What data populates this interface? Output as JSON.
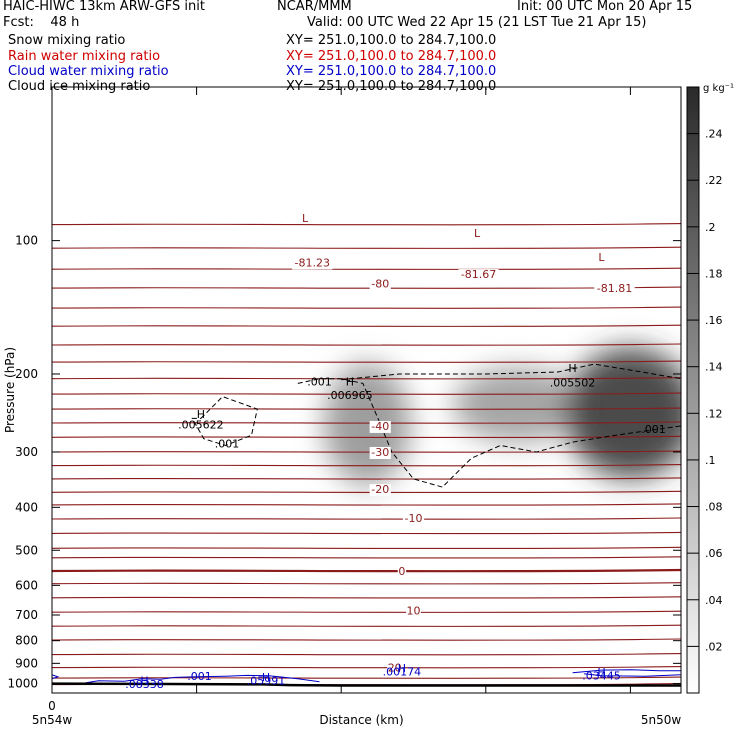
{
  "header": {
    "title_left": "HAIC-HIWC 13km ARW-GFS init",
    "org": "NCAR/MMM",
    "init": "Init: 00 UTC Mon 20 Apr 15",
    "fcst": "Fcst:    48 h",
    "valid": "Valid: 00 UTC Wed 22 Apr 15 (21 LST Tue 21 Apr 15)",
    "fields": [
      {
        "label": "Snow mixing ratio",
        "xy": "XY= 251.0,100.0 to 284.7,100.0",
        "color": "#000000"
      },
      {
        "label": "Rain water mixing ratio",
        "xy": "XY= 251.0,100.0 to 284.7,100.0",
        "color": "#d00000"
      },
      {
        "label": "Cloud water mixing ratio",
        "xy": "XY= 251.0,100.0 to 284.7,100.0",
        "color": "#0000c8"
      },
      {
        "label": "Cloud ice mixing ratio",
        "xy": "XY= 251.0,100.0 to 284.7,100.0",
        "color": "#000000"
      }
    ]
  },
  "chart_data": {
    "type": "heatmap",
    "xlabel": "Distance (km)",
    "ylabel": "Pressure (hPa)",
    "x_ticks": [
      "0"
    ],
    "x_end_labels": [
      "5n54w",
      "5n50w"
    ],
    "y_ticks": [
      100,
      200,
      300,
      400,
      500,
      600,
      700,
      800,
      900,
      1000
    ],
    "ylim": [
      1050,
      45
    ],
    "xlim": [
      0,
      4.35
    ],
    "colorbar": {
      "unit": "g kg⁻¹",
      "ticks": [
        ".02",
        ".04",
        ".06",
        ".08",
        ".1",
        ".12",
        ".14",
        ".16",
        ".18",
        ".2",
        ".22",
        ".24"
      ],
      "values": [
        0.02,
        0.04,
        0.06,
        0.08,
        0.1,
        0.12,
        0.14,
        0.16,
        0.18,
        0.2,
        0.22,
        0.24
      ],
      "range": [
        0,
        0.26
      ]
    },
    "shaded_blobs": [
      {
        "x": 2.18,
        "p": 260,
        "rx": 0.3,
        "rp": 80,
        "peak": 0.13
      },
      {
        "x": 3.22,
        "p": 235,
        "rx": 0.45,
        "rp": 45,
        "peak": 0.12
      },
      {
        "x": 4.0,
        "p": 245,
        "rx": 0.45,
        "rp": 80,
        "peak": 0.24
      }
    ],
    "isotherms_label_values": [
      "-81.23",
      "-80",
      "-81.67",
      "-81.81",
      "-40",
      "-30",
      "-20",
      "-10",
      "0",
      "10",
      "20"
    ],
    "temperature_labels": [
      {
        "text": "-81.23",
        "x": 1.8,
        "p": 112
      },
      {
        "text": "-80",
        "x": 2.27,
        "p": 125
      },
      {
        "text": "-81.67",
        "x": 2.95,
        "p": 119
      },
      {
        "text": "-81.81",
        "x": 3.89,
        "p": 128
      },
      {
        "text": "-40",
        "x": 2.27,
        "p": 262
      },
      {
        "text": "-30",
        "x": 2.27,
        "p": 300
      },
      {
        "text": "-20",
        "x": 2.27,
        "p": 364
      },
      {
        "text": "-10",
        "x": 2.5,
        "p": 423
      },
      {
        "text": "0",
        "x": 2.42,
        "p": 557
      },
      {
        "text": "10",
        "x": 2.5,
        "p": 683
      },
      {
        "text": "20",
        "x": 2.37,
        "p": 920
      }
    ],
    "temperature_extrema": [
      {
        "text": "L",
        "x": 1.75,
        "p": 89
      },
      {
        "text": "L",
        "x": 2.94,
        "p": 96
      },
      {
        "text": "L",
        "x": 3.8,
        "p": 109
      }
    ],
    "ice_labels": [
      {
        "text": "H",
        "x": 1.03,
        "p": 246
      },
      {
        "text": ".005622",
        "x": 1.03,
        "p": 260
      },
      {
        "text": ".001",
        "x": 1.21,
        "p": 287
      },
      {
        "text": ".001",
        "x": 1.85,
        "p": 208
      },
      {
        "text": "H",
        "x": 2.06,
        "p": 208
      },
      {
        "text": ".006965",
        "x": 2.06,
        "p": 223
      },
      {
        "text": "H",
        "x": 3.6,
        "p": 194
      },
      {
        "text": ".005502",
        "x": 3.6,
        "p": 209
      },
      {
        "text": ".001",
        "x": 4.16,
        "p": 266
      }
    ],
    "cloud_water_labels": [
      {
        "text": ".001",
        "x": 1.02,
        "p": 960
      },
      {
        "text": "H",
        "x": 1.48,
        "p": 966
      },
      {
        "text": ".05991",
        "x": 1.48,
        "p": 983
      },
      {
        "text": "H",
        "x": 0.64,
        "p": 985
      },
      {
        "text": ".08338",
        "x": 0.64,
        "p": 1002
      },
      {
        "text": "H",
        "x": 2.42,
        "p": 922
      },
      {
        "text": ".00174",
        "x": 2.42,
        "p": 939
      },
      {
        "text": "H",
        "x": 3.8,
        "p": 942
      },
      {
        "text": ".03445",
        "x": 3.8,
        "p": 959
      }
    ]
  }
}
